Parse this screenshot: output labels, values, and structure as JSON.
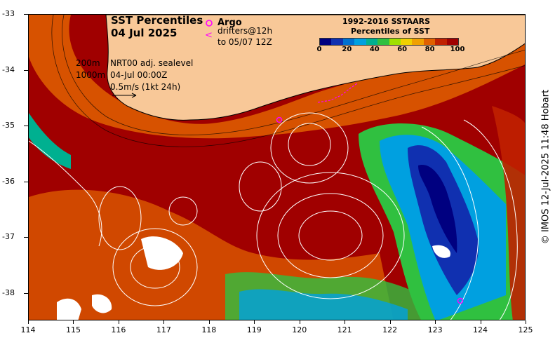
{
  "title": {
    "line1": "SST Percentiles",
    "line2": "04 Jul 2025"
  },
  "legend": {
    "argo_label": "Argo",
    "drifters_line1": "drifters@12h",
    "drifters_line2": "to 05/07 12Z",
    "depth_200": "200m",
    "depth_1000": "1000m",
    "sealevel_line1": "NRT00 adj. sealevel",
    "sealevel_line2": "04-Jul 00:00Z",
    "velocity_scale": "0.5m/s (1kt 24h)"
  },
  "colorbar": {
    "title_line1": "1992-2016 SSTAARS",
    "title_line2": "Percentiles of SST",
    "ticks": [
      "0",
      "20",
      "40",
      "60",
      "80",
      "100"
    ],
    "colors": [
      "#000080",
      "#1030b0",
      "#0070d0",
      "#00a0e0",
      "#00b090",
      "#30c040",
      "#a0e000",
      "#f0d000",
      "#f0a000",
      "#e06000",
      "#c02000",
      "#a00000"
    ]
  },
  "axes": {
    "y_ticks": [
      "-33",
      "-34",
      "-35",
      "-36",
      "-37",
      "-38"
    ],
    "x_ticks": [
      "114",
      "115",
      "116",
      "117",
      "118",
      "119",
      "120",
      "121",
      "122",
      "123",
      "124",
      "125"
    ]
  },
  "credit": "© IMOS 12-Jul-2025 11:48 Hobart",
  "colors": {
    "land": "#f8c898",
    "hot": "#a00000",
    "cold": "#000080",
    "argo": "#ff00ff"
  }
}
